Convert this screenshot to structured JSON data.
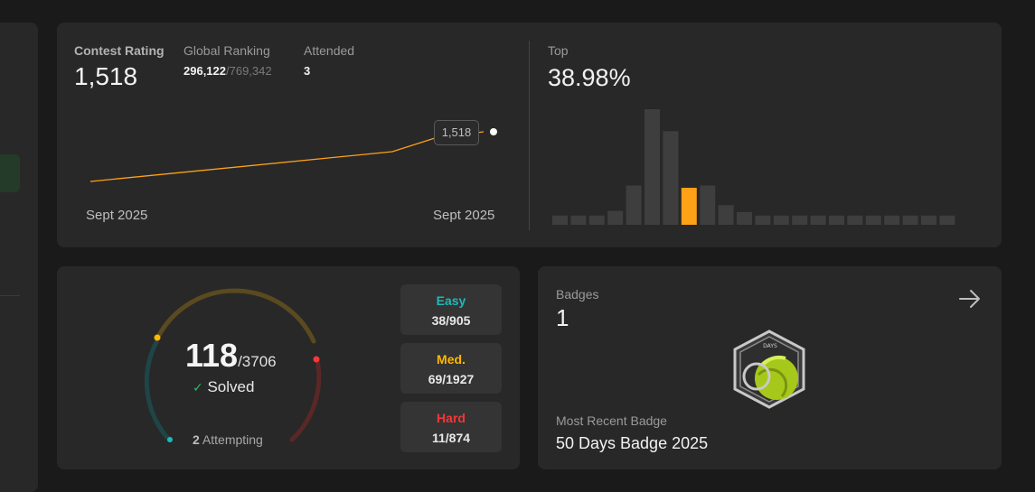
{
  "contest": {
    "rating_label": "Contest Rating",
    "rating_value": "1,518",
    "global_label": "Global Ranking",
    "global_rank": "296,122",
    "global_total": "/769,342",
    "attended_label": "Attended",
    "attended_value": "3",
    "tooltip": "1,518",
    "date_start": "Sept 2025",
    "date_end": "Sept 2025",
    "line_color": "#ffa116"
  },
  "top": {
    "label": "Top",
    "value": "38.98%",
    "histogram_levels": [
      0.08,
      0.08,
      0.08,
      0.12,
      0.34,
      1.0,
      0.81,
      0.32,
      0.34,
      0.17,
      0.11,
      0.08,
      0.08,
      0.08,
      0.08,
      0.08,
      0.08,
      0.08,
      0.08,
      0.08,
      0.08,
      0.08
    ],
    "highlight_index": 7,
    "highlight_color": "#ffa116",
    "bar_color": "#3e3e3e"
  },
  "problems": {
    "solved": "118",
    "total": "/3706",
    "solved_label": "Solved",
    "attempting_count": "2",
    "attempting_label": "Attempting",
    "easy_label": "Easy",
    "easy_value": "38/905",
    "medium_label": "Med.",
    "medium_value": "69/1927",
    "hard_label": "Hard",
    "hard_value": "11/874",
    "easy_color": "#1cbaba",
    "medium_color": "#ffb700",
    "hard_color": "#f63737"
  },
  "badges": {
    "label": "Badges",
    "count": "1",
    "recent_label": "Most Recent Badge",
    "recent_name": "50 Days Badge 2025",
    "badge_text": "DAYS",
    "arrow_icon": "arrow-right-icon"
  }
}
